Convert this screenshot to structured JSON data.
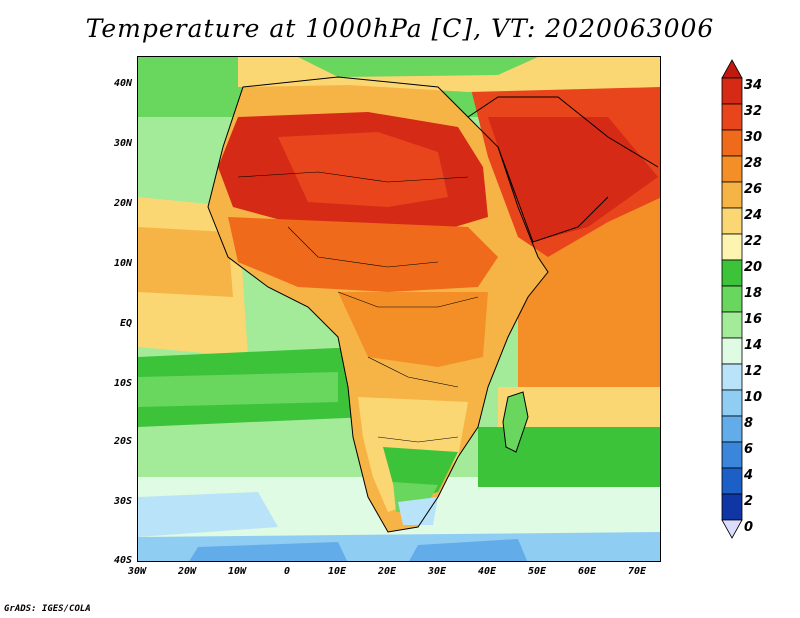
{
  "title": "Temperature at 1000hPa [C], VT: 2020063006",
  "footer": "GrADS: IGES/COLA",
  "lat_labels": [
    "40N",
    "30N",
    "20N",
    "10N",
    "EQ",
    "10S",
    "20S",
    "30S",
    "40S"
  ],
  "lon_labels": [
    "30W",
    "20W",
    "10W",
    "0",
    "10E",
    "20E",
    "30E",
    "40E",
    "50E",
    "60E",
    "70E"
  ],
  "colorbar": {
    "labels": [
      "34",
      "32",
      "30",
      "28",
      "26",
      "24",
      "22",
      "20",
      "18",
      "16",
      "14",
      "12",
      "10",
      "8",
      "6",
      "4",
      "2",
      "0"
    ],
    "colors": [
      "#d52a16",
      "#e8451d",
      "#f06a1c",
      "#f48f28",
      "#f7b446",
      "#fbd774",
      "#fdf4b2",
      "#3cc33a",
      "#69d65e",
      "#a3ea99",
      "#e0fbe3",
      "#b9e3f8",
      "#90cdf2",
      "#63acea",
      "#3b86db",
      "#1c5fc6",
      "#0f36a4",
      "#08136e"
    ],
    "top_arrow_color": "#c01a10",
    "bottom_arrow_color": "#dcdcff"
  }
}
